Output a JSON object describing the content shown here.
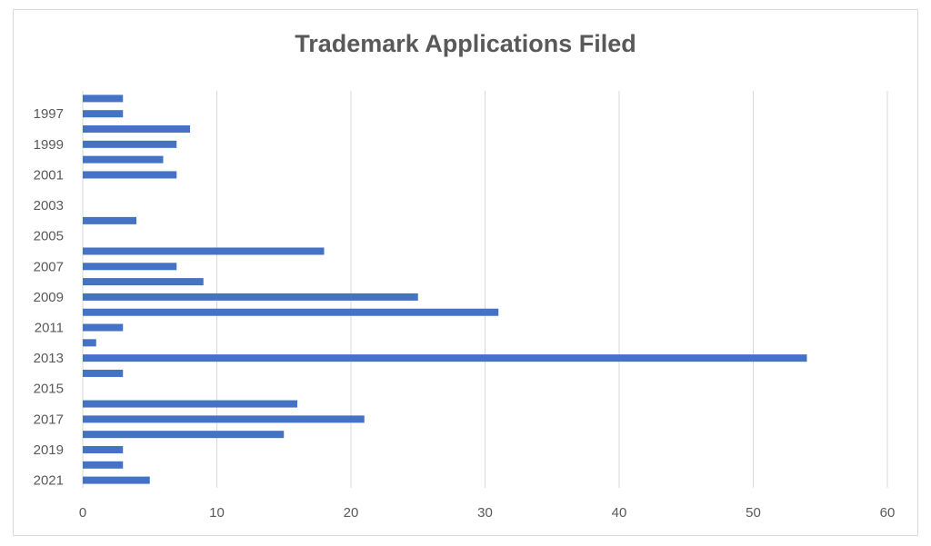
{
  "chart_data": {
    "type": "barh",
    "title": "Trademark Applications Filed",
    "categories": [
      null,
      "1997",
      null,
      "1999",
      null,
      "2001",
      null,
      "2003",
      null,
      "2005",
      null,
      "2007",
      null,
      "2009",
      null,
      "2011",
      null,
      "2013",
      null,
      "2015",
      null,
      "2017",
      null,
      "2019",
      null,
      "2021"
    ],
    "values": [
      3,
      3,
      8,
      7,
      6,
      7,
      0,
      0,
      4,
      0,
      18,
      7,
      9,
      25,
      31,
      3,
      1,
      54,
      3,
      0,
      16,
      21,
      15,
      3,
      3,
      5
    ],
    "color": "#4472c4",
    "xlim": [
      0,
      60
    ],
    "xticks": [
      0,
      10,
      20,
      30,
      40,
      50,
      60
    ],
    "grid": true
  }
}
